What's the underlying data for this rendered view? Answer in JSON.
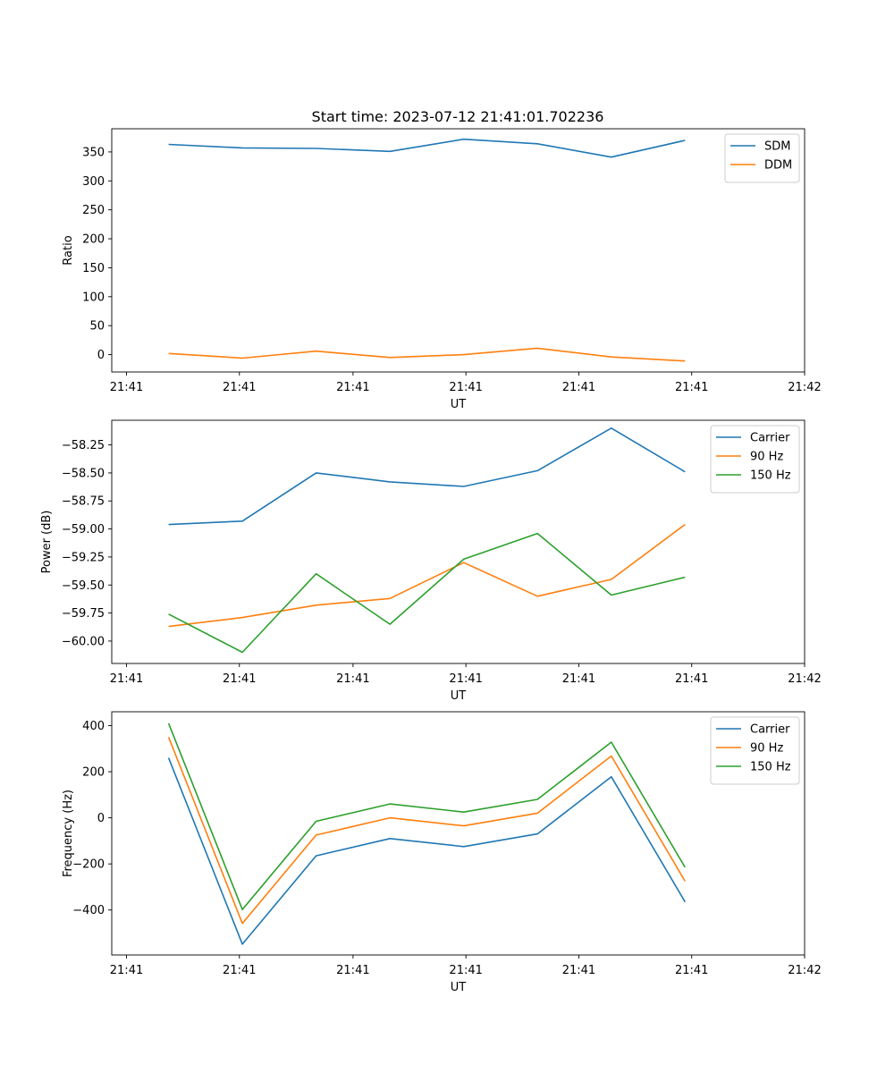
{
  "figure": {
    "title": "Start time: 2023-07-12 21:41:01.702236"
  },
  "chart_data": [
    {
      "type": "line",
      "title": "Start time: 2023-07-12 21:41:01.702236",
      "xlabel": "UT",
      "ylabel": "Ratio",
      "x": [
        1,
        2,
        3,
        4,
        5,
        6,
        7,
        8
      ],
      "xlim": [
        0.23,
        9.62
      ],
      "x_ticks": [
        0.43,
        1.96,
        3.5,
        5.03,
        6.56,
        8.09,
        9.62
      ],
      "x_tick_labels": [
        "21:41",
        "21:41",
        "21:41",
        "21:41",
        "21:41",
        "21:41",
        "21:42"
      ],
      "ylim": [
        -30,
        390
      ],
      "y_ticks": [
        0,
        50,
        100,
        150,
        200,
        250,
        300,
        350
      ],
      "y_tick_labels": [
        "0",
        "50",
        "100",
        "150",
        "200",
        "250",
        "300",
        "350"
      ],
      "legend_position": "upper right",
      "grid": false,
      "series": [
        {
          "name": "SDM",
          "color": "#1f77b4",
          "values": [
            363,
            357,
            356,
            351,
            372,
            364,
            341,
            370
          ]
        },
        {
          "name": "DDM",
          "color": "#ff7f0e",
          "values": [
            2,
            -6,
            6,
            -5,
            0,
            11,
            -4,
            -11
          ]
        }
      ]
    },
    {
      "type": "line",
      "title": "",
      "xlabel": "UT",
      "ylabel": "Power (dB)",
      "x": [
        1,
        2,
        3,
        4,
        5,
        6,
        7,
        8
      ],
      "xlim": [
        0.23,
        9.62
      ],
      "x_ticks": [
        0.43,
        1.96,
        3.5,
        5.03,
        6.56,
        8.09,
        9.62
      ],
      "x_tick_labels": [
        "21:41",
        "21:41",
        "21:41",
        "21:41",
        "21:41",
        "21:41",
        "21:42"
      ],
      "ylim": [
        -60.2,
        -58.03
      ],
      "y_ticks": [
        -60.0,
        -59.75,
        -59.5,
        -59.25,
        -59.0,
        -58.75,
        -58.5,
        -58.25
      ],
      "y_tick_labels": [
        "−60.00",
        "−59.75",
        "−59.50",
        "−59.25",
        "−59.00",
        "−58.75",
        "−58.50",
        "−58.25"
      ],
      "legend_position": "upper right",
      "grid": false,
      "series": [
        {
          "name": "Carrier",
          "color": "#1f77b4",
          "values": [
            -58.96,
            -58.93,
            -58.5,
            -58.58,
            -58.62,
            -58.48,
            -58.1,
            -58.49
          ]
        },
        {
          "name": "90 Hz",
          "color": "#ff7f0e",
          "values": [
            -59.87,
            -59.79,
            -59.68,
            -59.62,
            -59.3,
            -59.6,
            -59.45,
            -58.96
          ]
        },
        {
          "name": "150 Hz",
          "color": "#2ca02c",
          "values": [
            -59.76,
            -60.1,
            -59.4,
            -59.85,
            -59.27,
            -59.04,
            -59.59,
            -59.43
          ]
        }
      ]
    },
    {
      "type": "line",
      "title": "",
      "xlabel": "UT",
      "ylabel": "Frequency (Hz)",
      "x": [
        1,
        2,
        3,
        4,
        5,
        6,
        7,
        8
      ],
      "xlim": [
        0.23,
        9.62
      ],
      "x_ticks": [
        0.43,
        1.96,
        3.5,
        5.03,
        6.56,
        8.09,
        9.62
      ],
      "x_tick_labels": [
        "21:41",
        "21:41",
        "21:41",
        "21:41",
        "21:41",
        "21:41",
        "21:42"
      ],
      "ylim": [
        -595,
        460
      ],
      "y_ticks": [
        -400,
        -200,
        0,
        200,
        400
      ],
      "y_tick_labels": [
        "−400",
        "−200",
        "0",
        "200",
        "400"
      ],
      "legend_position": "upper right",
      "grid": false,
      "series": [
        {
          "name": "Carrier",
          "color": "#1f77b4",
          "values": [
            260,
            -548,
            -165,
            -90,
            -125,
            -70,
            178,
            -365
          ]
        },
        {
          "name": "90 Hz",
          "color": "#ff7f0e",
          "values": [
            350,
            -458,
            -75,
            0,
            -35,
            20,
            268,
            -275
          ]
        },
        {
          "name": "150 Hz",
          "color": "#2ca02c",
          "values": [
            410,
            -398,
            -15,
            60,
            25,
            80,
            328,
            -215
          ]
        }
      ]
    }
  ]
}
